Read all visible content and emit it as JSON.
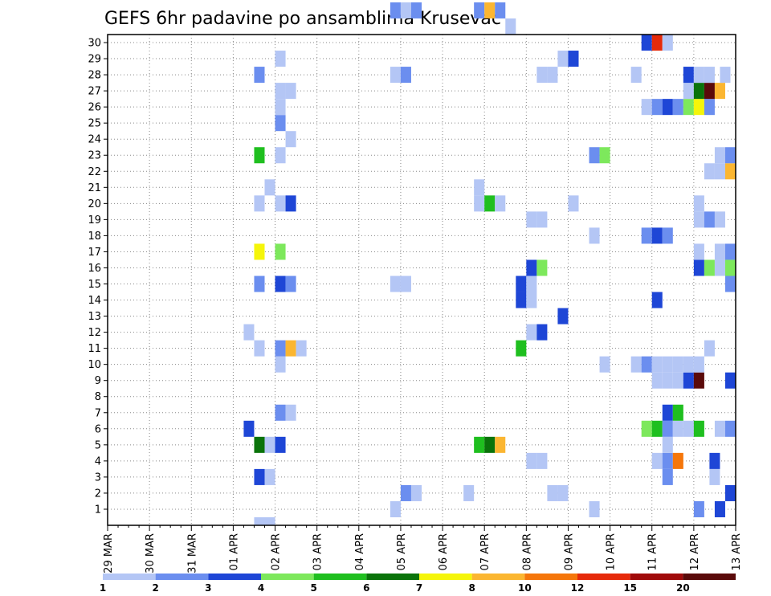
{
  "chart_data": {
    "type": "heatmap",
    "title": "GEFS 6hr padavine po ansamblima Krusevac",
    "xlabel": "",
    "ylabel": "",
    "x_tick_labels": [
      "29 MAR",
      "30 MAR",
      "31 MAR",
      "01 APR",
      "02 APR",
      "03 APR",
      "04 APR",
      "05 APR",
      "06 APR",
      "07 APR",
      "08 APR",
      "09 APR",
      "10 APR",
      "11 APR",
      "12 APR",
      "13 APR"
    ],
    "y_tick_labels": [
      "1",
      "2",
      "3",
      "4",
      "5",
      "6",
      "7",
      "8",
      "9",
      "10",
      "11",
      "12",
      "13",
      "14",
      "15",
      "16",
      "17",
      "18",
      "19",
      "20",
      "21",
      "22",
      "23",
      "24",
      "25",
      "26",
      "27",
      "28",
      "29",
      "30"
    ],
    "x_range_days": [
      0,
      15
    ],
    "y_range": [
      0,
      30
    ],
    "grid": true,
    "colorbar": {
      "labels": [
        "1",
        "2",
        "3",
        "4",
        "5",
        "6",
        "7",
        "8",
        "10",
        "12",
        "15",
        "20"
      ],
      "colors": [
        "#b4c6f5",
        "#6b8eef",
        "#1e46d6",
        "#7de85c",
        "#1fbf1f",
        "#0a730a",
        "#f5f50a",
        "#fbb631",
        "#f5760a",
        "#e62a0a",
        "#a00a0a",
        "#5a0a0a"
      ]
    },
    "cells": [
      [
        3.5,
        0,
        1
      ],
      [
        3.625,
        0,
        1
      ],
      [
        3.75,
        0,
        1
      ],
      [
        6.75,
        1,
        1
      ],
      [
        11.5,
        1,
        1
      ],
      [
        14.0,
        1,
        2
      ],
      [
        14.5,
        1,
        3
      ],
      [
        15.0,
        1,
        6
      ],
      [
        7.0,
        2,
        2
      ],
      [
        7.25,
        2,
        1
      ],
      [
        8.5,
        2,
        1
      ],
      [
        10.5,
        2,
        1
      ],
      [
        10.75,
        2,
        1
      ],
      [
        14.75,
        2,
        3
      ],
      [
        15.0,
        2,
        1
      ],
      [
        3.5,
        3,
        3
      ],
      [
        3.75,
        3,
        1
      ],
      [
        13.25,
        3,
        2
      ],
      [
        14.375,
        3,
        1
      ],
      [
        10.0,
        4,
        1
      ],
      [
        10.25,
        4,
        1
      ],
      [
        13.0,
        4,
        1
      ],
      [
        13.25,
        4,
        2
      ],
      [
        13.5,
        4,
        9
      ],
      [
        14.375,
        4,
        3
      ],
      [
        3.5,
        5,
        6
      ],
      [
        3.75,
        5,
        1
      ],
      [
        4.0,
        5,
        3
      ],
      [
        8.75,
        5,
        5
      ],
      [
        9.0,
        5,
        6
      ],
      [
        9.25,
        5,
        8
      ],
      [
        13.25,
        5,
        1
      ],
      [
        3.25,
        6,
        3
      ],
      [
        12.75,
        6,
        4
      ],
      [
        13.0,
        6,
        5
      ],
      [
        13.25,
        6,
        2
      ],
      [
        13.5,
        6,
        1
      ],
      [
        13.75,
        6,
        1
      ],
      [
        14.0,
        6,
        5
      ],
      [
        14.5,
        6,
        1
      ],
      [
        14.75,
        6,
        2
      ],
      [
        15.0,
        6,
        4
      ],
      [
        4.0,
        7,
        2
      ],
      [
        4.25,
        7,
        1
      ],
      [
        13.25,
        7,
        3
      ],
      [
        13.5,
        7,
        5
      ],
      [
        15.0,
        8,
        1
      ],
      [
        13.0,
        9,
        1
      ],
      [
        13.25,
        9,
        1
      ],
      [
        13.5,
        9,
        1
      ],
      [
        13.75,
        9,
        3
      ],
      [
        14.0,
        9,
        12
      ],
      [
        14.75,
        9,
        3
      ],
      [
        4.0,
        10,
        1
      ],
      [
        11.75,
        10,
        1
      ],
      [
        12.5,
        10,
        1
      ],
      [
        12.75,
        10,
        2
      ],
      [
        13.0,
        10,
        1
      ],
      [
        13.25,
        10,
        1
      ],
      [
        13.5,
        10,
        1
      ],
      [
        13.75,
        10,
        1
      ],
      [
        14.0,
        10,
        1
      ],
      [
        3.5,
        11,
        1
      ],
      [
        4.0,
        11,
        2
      ],
      [
        4.25,
        11,
        8
      ],
      [
        4.5,
        11,
        1
      ],
      [
        9.75,
        11,
        5
      ],
      [
        14.25,
        11,
        1
      ],
      [
        3.25,
        12,
        1
      ],
      [
        10.0,
        12,
        1
      ],
      [
        10.25,
        12,
        3
      ],
      [
        10.75,
        13,
        3
      ],
      [
        9.75,
        14,
        3
      ],
      [
        10.0,
        14,
        1
      ],
      [
        13.0,
        14,
        3
      ],
      [
        15.0,
        14,
        4
      ],
      [
        3.5,
        15,
        2
      ],
      [
        4.0,
        15,
        3
      ],
      [
        4.25,
        15,
        2
      ],
      [
        6.75,
        15,
        1
      ],
      [
        7.0,
        15,
        1
      ],
      [
        9.75,
        15,
        3
      ],
      [
        10.0,
        15,
        1
      ],
      [
        14.75,
        15,
        2
      ],
      [
        10.0,
        16,
        3
      ],
      [
        10.25,
        16,
        4
      ],
      [
        14.0,
        16,
        3
      ],
      [
        14.25,
        16,
        4
      ],
      [
        14.5,
        16,
        1
      ],
      [
        14.75,
        16,
        4
      ],
      [
        15.0,
        16,
        3
      ],
      [
        3.5,
        17,
        7
      ],
      [
        4.0,
        17,
        4
      ],
      [
        14.0,
        17,
        1
      ],
      [
        14.5,
        17,
        1
      ],
      [
        14.75,
        17,
        2
      ],
      [
        15.0,
        17,
        2
      ],
      [
        11.5,
        18,
        1
      ],
      [
        12.75,
        18,
        2
      ],
      [
        13.0,
        18,
        3
      ],
      [
        13.25,
        18,
        2
      ],
      [
        10.0,
        19,
        1
      ],
      [
        10.25,
        19,
        1
      ],
      [
        14.0,
        19,
        1
      ],
      [
        14.25,
        19,
        2
      ],
      [
        14.5,
        19,
        1
      ],
      [
        3.5,
        20,
        1
      ],
      [
        4.0,
        20,
        1
      ],
      [
        4.25,
        20,
        3
      ],
      [
        8.75,
        20,
        1
      ],
      [
        9.0,
        20,
        5
      ],
      [
        9.25,
        20,
        1
      ],
      [
        11.0,
        20,
        1
      ],
      [
        14.0,
        20,
        1
      ],
      [
        3.75,
        21,
        1
      ],
      [
        8.75,
        21,
        1
      ],
      [
        14.25,
        22,
        1
      ],
      [
        14.5,
        22,
        1
      ],
      [
        14.75,
        22,
        8
      ],
      [
        15.0,
        22,
        1
      ],
      [
        3.5,
        23,
        5
      ],
      [
        4.0,
        23,
        1
      ],
      [
        11.5,
        23,
        2
      ],
      [
        11.75,
        23,
        4
      ],
      [
        14.5,
        23,
        1
      ],
      [
        14.75,
        23,
        2
      ],
      [
        15.0,
        23,
        1
      ],
      [
        4.25,
        24,
        1
      ],
      [
        4.0,
        25,
        2
      ],
      [
        4.0,
        26,
        1
      ],
      [
        12.75,
        26,
        1
      ],
      [
        13.0,
        26,
        2
      ],
      [
        13.25,
        26,
        3
      ],
      [
        13.5,
        26,
        2
      ],
      [
        13.75,
        26,
        4
      ],
      [
        14.0,
        26,
        7
      ],
      [
        14.25,
        26,
        2
      ],
      [
        15.0,
        26,
        2
      ],
      [
        4.0,
        27,
        1
      ],
      [
        4.25,
        27,
        1
      ],
      [
        13.75,
        27,
        1
      ],
      [
        14.0,
        27,
        6
      ],
      [
        14.25,
        27,
        12
      ],
      [
        14.5,
        27,
        8
      ],
      [
        3.5,
        28,
        2
      ],
      [
        6.75,
        28,
        1
      ],
      [
        7.0,
        28,
        2
      ],
      [
        10.25,
        28,
        1
      ],
      [
        10.5,
        28,
        1
      ],
      [
        12.5,
        28,
        1
      ],
      [
        13.75,
        28,
        3
      ],
      [
        14.0,
        28,
        1
      ],
      [
        14.25,
        28,
        1
      ],
      [
        14.625,
        28,
        1
      ],
      [
        4.0,
        29,
        1
      ],
      [
        10.75,
        29,
        1
      ],
      [
        11.0,
        29,
        3
      ],
      [
        12.75,
        30,
        3
      ],
      [
        13.0,
        30,
        10
      ],
      [
        13.25,
        30,
        1
      ],
      [
        9.5,
        31,
        1
      ],
      [
        6.75,
        32,
        2
      ],
      [
        7.0,
        32,
        1
      ],
      [
        7.25,
        32,
        2
      ],
      [
        8.75,
        32,
        2
      ],
      [
        9.0,
        32,
        8
      ],
      [
        9.25,
        32,
        2
      ]
    ]
  }
}
